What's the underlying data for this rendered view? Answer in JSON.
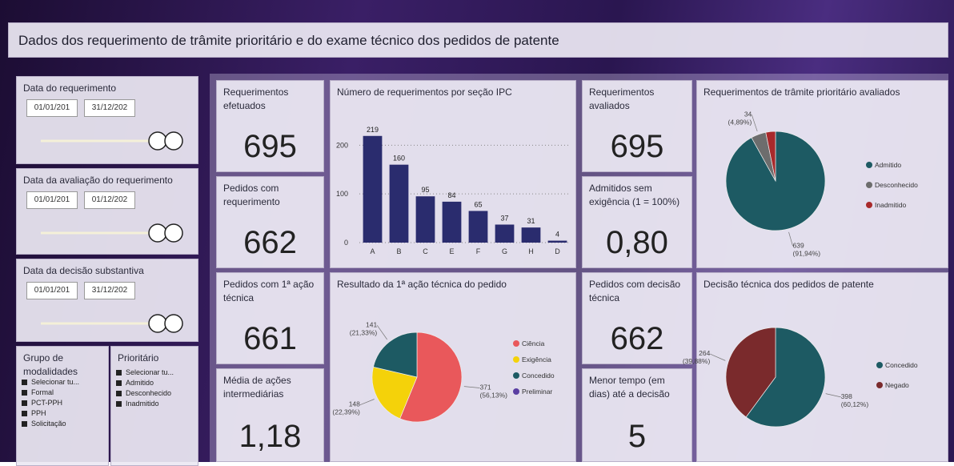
{
  "header": {
    "title": "Dados dos requerimento de trâmite prioritário e do exame técnico dos pedidos de patente"
  },
  "filters": [
    {
      "title": "Data do requerimento",
      "start": "01/01/201",
      "end": "31/12/202"
    },
    {
      "title": "Data da avaliação do requerimento",
      "start": "01/01/201",
      "end": "01/12/202"
    },
    {
      "title": "Data da decisão substantiva",
      "start": "01/01/201",
      "end": "31/12/202"
    }
  ],
  "lists": [
    {
      "title": "Grupo de modalidades",
      "items": [
        "Selecionar tu...",
        "Formal",
        "PCT-PPH",
        "PPH",
        "Solicitação"
      ]
    },
    {
      "title": "Prioritário",
      "items": [
        "Selecionar tu...",
        "Admitido",
        "Desconhecido",
        "Inadmitido"
      ]
    }
  ],
  "kpis": [
    {
      "label": "Requerimentos efetuados",
      "value": "695"
    },
    {
      "label": "Pedidos com requerimento",
      "value": "662"
    },
    {
      "label": "Pedidos com 1ª ação técnica",
      "value": "661"
    },
    {
      "label": "Média de ações intermediárias",
      "value": "1,18"
    },
    {
      "label": "Requerimentos avaliados",
      "value": "695"
    },
    {
      "label": "Admitidos sem exigência (1 = 100%)",
      "value": "0,80"
    },
    {
      "label": "Pedidos com decisão técnica",
      "value": "662"
    },
    {
      "label": "Menor tempo (em dias) até a decisão",
      "value": "5"
    }
  ],
  "chart_data": [
    {
      "type": "bar",
      "title": "Número de requerimentos por seção IPC",
      "categories": [
        "A",
        "B",
        "C",
        "E",
        "F",
        "G",
        "H",
        "D"
      ],
      "values": [
        219,
        160,
        95,
        84,
        65,
        37,
        31,
        4
      ],
      "color": "#2a2c6e",
      "ylim": [
        0,
        240
      ],
      "yticks": [
        0,
        100,
        200
      ],
      "grid": true
    },
    {
      "type": "pie",
      "title": "Resultado da 1ª ação técnica do pedido",
      "categories": [
        "Ciência",
        "Exigência",
        "Concedido",
        "Preliminar"
      ],
      "values": [
        371,
        148,
        141,
        null
      ],
      "percent_labels": [
        "(56,13%)",
        "(22,39%)",
        "(21,33%)",
        null
      ],
      "colors": [
        "#e9585b",
        "#f4d20a",
        "#1d5a63",
        "#5a3ea2"
      ]
    },
    {
      "type": "pie",
      "title": "Requerimentos de trâmite prioritário avaliados",
      "categories": [
        "Admitido",
        "Desconhecido",
        "Inadmitido"
      ],
      "values": [
        639,
        34,
        22
      ],
      "percent_labels": [
        "(91,94%)",
        "(4,89%)",
        null
      ],
      "colors": [
        "#1d5a63",
        "#6d6d6d",
        "#a8292b"
      ]
    },
    {
      "type": "pie",
      "title": "Decisão técnica dos pedidos de patente",
      "categories": [
        "Concedido",
        "Negado"
      ],
      "values": [
        398,
        264
      ],
      "percent_labels": [
        "(60,12%)",
        "(39,88%)"
      ],
      "colors": [
        "#1d5a63",
        "#7a2a2c"
      ]
    }
  ]
}
